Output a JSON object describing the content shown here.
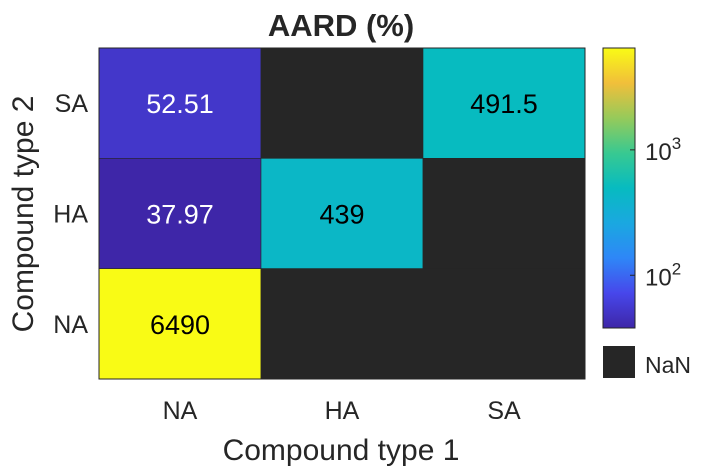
{
  "chart_data": {
    "type": "heatmap",
    "title": "AARD (%)",
    "xlabel": "Compound type 1",
    "ylabel": "Compound type 2",
    "x_categories": [
      "NA",
      "HA",
      "SA"
    ],
    "y_categories": [
      "SA",
      "HA",
      "NA"
    ],
    "cells": [
      {
        "x": "NA",
        "y": "SA",
        "value": 52.51,
        "label": "52.51"
      },
      {
        "x": "HA",
        "y": "SA",
        "value": null,
        "label": ""
      },
      {
        "x": "SA",
        "y": "SA",
        "value": 491.5,
        "label": "491.5"
      },
      {
        "x": "NA",
        "y": "HA",
        "value": 37.97,
        "label": "37.97"
      },
      {
        "x": "HA",
        "y": "HA",
        "value": 439,
        "label": "439"
      },
      {
        "x": "SA",
        "y": "HA",
        "value": null,
        "label": ""
      },
      {
        "x": "NA",
        "y": "NA",
        "value": 6490,
        "label": "6490"
      },
      {
        "x": "HA",
        "y": "NA",
        "value": null,
        "label": ""
      },
      {
        "x": "SA",
        "y": "NA",
        "value": null,
        "label": ""
      }
    ],
    "colorbar": {
      "scale": "log",
      "range": [
        37.97,
        6490
      ],
      "colormap": "parula",
      "ticks": [
        {
          "value": 100,
          "base": "10",
          "exponent": "2"
        },
        {
          "value": 1000,
          "base": "10",
          "exponent": "3"
        }
      ]
    },
    "missing": {
      "label": "NaN",
      "color": "#262626"
    }
  }
}
